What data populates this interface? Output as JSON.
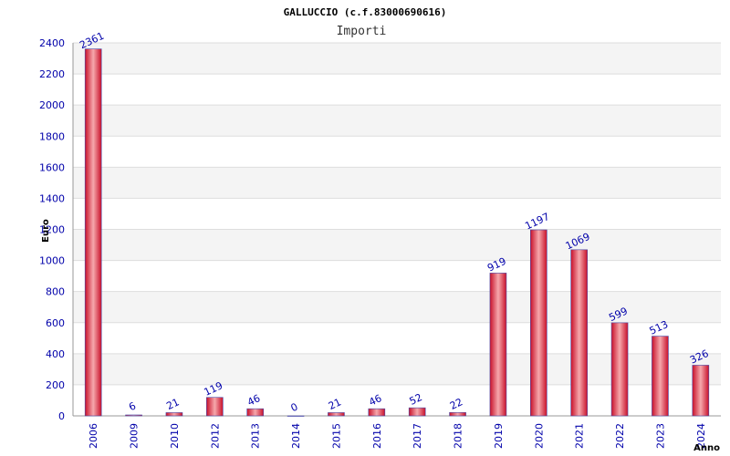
{
  "chart_data": {
    "type": "bar",
    "title": "GALLUCCIO (c.f.83000690616)",
    "subtitle": "Importi",
    "ylabel": "Euro",
    "xlabel": "Anno",
    "ylim": [
      0,
      2400
    ],
    "yticks": [
      0,
      200,
      400,
      600,
      800,
      1000,
      1200,
      1400,
      1600,
      1800,
      2000,
      2200,
      2400
    ],
    "grid": "horizontal",
    "categories": [
      "2006",
      "2009",
      "2010",
      "2012",
      "2013",
      "2014",
      "2015",
      "2016",
      "2017",
      "2018",
      "2019",
      "2020",
      "2021",
      "2022",
      "2023",
      "2024"
    ],
    "values": [
      2361,
      6,
      21,
      119,
      46,
      0,
      21,
      46,
      52,
      22,
      919,
      1197,
      1069,
      599,
      513,
      326
    ],
    "colors": {
      "bar": "#e8303a",
      "bar_light": "#f4a0a4",
      "bar_edge": "#4a4aa8",
      "band": "#f4f4f4",
      "axis": "#999999"
    }
  }
}
